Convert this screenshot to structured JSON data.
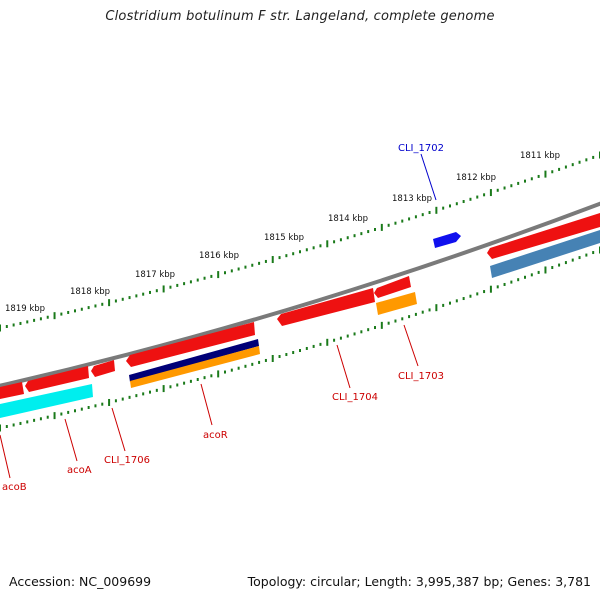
{
  "title": "Clostridium botulinum F str. Langeland, complete genome",
  "footer": {
    "accession": "Accession: NC_009699",
    "summary": "Topology: circular; Length: 3,995,387 bp; Genes: 3,781"
  },
  "colors": {
    "backbone": "#7a7a7a",
    "tick": "#1a7a1a",
    "gene_red": "#ee1111",
    "gene_blue": "#1010ee",
    "gene_navy": "#000077",
    "gene_orange": "#ff9900",
    "gene_cyan": "#00eeee",
    "gene_steel": "#4682b4",
    "label_red": "#cc0000",
    "label_blue": "#0000cc"
  },
  "map": {
    "kbp_labels": [
      "1811 kbp",
      "1812 kbp",
      "1813 kbp",
      "1814 kbp",
      "1815 kbp",
      "1816 kbp",
      "1817 kbp",
      "1818 kbp",
      "1819 kbp"
    ]
  },
  "genes": {
    "labels": [
      {
        "name": "CLI_1702",
        "color": "blue"
      },
      {
        "name": "CLI_1703",
        "color": "red"
      },
      {
        "name": "CLI_1704",
        "color": "red"
      },
      {
        "name": "acoR",
        "color": "red"
      },
      {
        "name": "CLI_1706",
        "color": "red"
      },
      {
        "name": "acoA",
        "color": "red"
      },
      {
        "name": "acoB",
        "color": "red"
      }
    ]
  }
}
